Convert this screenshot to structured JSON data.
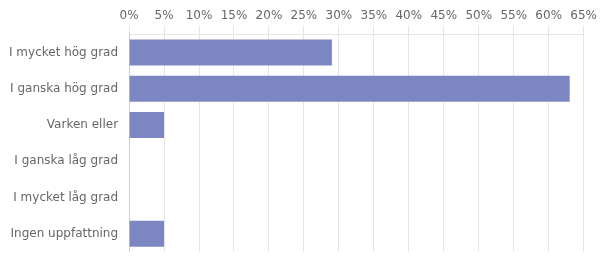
{
  "chart_data": {
    "type": "bar",
    "orientation": "horizontal",
    "categories": [
      "I mycket hög grad",
      "I ganska hög grad",
      "Varken eller",
      "I ganska låg grad",
      "I mycket låg grad",
      "Ingen uppfattning"
    ],
    "values": [
      29,
      63,
      5,
      0,
      0,
      5
    ],
    "color": "#7b86c2",
    "xlim": [
      0,
      65
    ],
    "xticks": [
      {
        "value": 0,
        "label": "0%"
      },
      {
        "value": 5,
        "label": "5%"
      },
      {
        "value": 10,
        "label": "10%"
      },
      {
        "value": 15,
        "label": "15%"
      },
      {
        "value": 20,
        "label": "20%"
      },
      {
        "value": 25,
        "label": "25%"
      },
      {
        "value": 30,
        "label": "30%"
      },
      {
        "value": 35,
        "label": "35%"
      },
      {
        "value": 40,
        "label": "40%"
      },
      {
        "value": 45,
        "label": "45%"
      },
      {
        "value": 50,
        "label": "50%"
      },
      {
        "value": 55,
        "label": "55%"
      },
      {
        "value": 60,
        "label": "60%"
      },
      {
        "value": 65,
        "label": "65%"
      }
    ],
    "grid": true
  }
}
